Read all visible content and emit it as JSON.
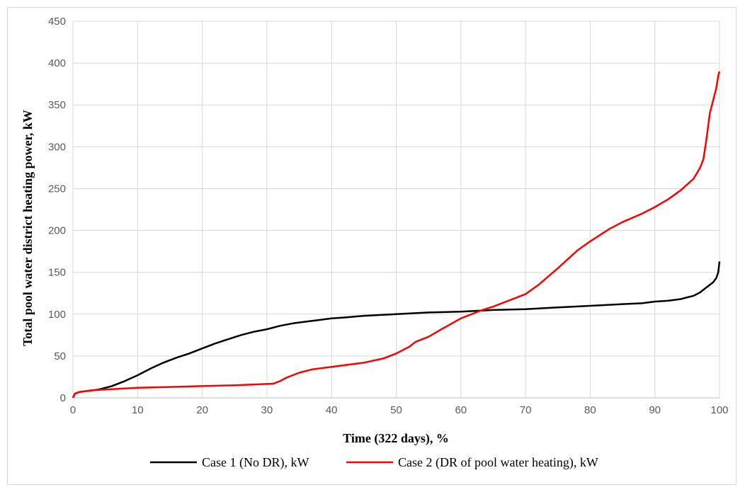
{
  "chart_data": {
    "type": "line",
    "title": "",
    "xlabel": "Time (322 days), %",
    "ylabel": "Total pool water district heating power, kW",
    "xlim": [
      0,
      100
    ],
    "ylim": [
      0,
      450
    ],
    "x_ticks": [
      "0",
      "10",
      "20",
      "30",
      "40",
      "50",
      "60",
      "70",
      "80",
      "90",
      "100"
    ],
    "y_ticks": [
      "0",
      "50",
      "100",
      "150",
      "200",
      "250",
      "300",
      "350",
      "400",
      "450"
    ],
    "grid": true,
    "legend_position": "bottom",
    "series": [
      {
        "name": "Case 1 (No DR), kW",
        "color": "#000000",
        "x": [
          0,
          0.3,
          1,
          2,
          3,
          4,
          5,
          6,
          7,
          8,
          10,
          12,
          14,
          16,
          18,
          20,
          22,
          24,
          26,
          28,
          30,
          32,
          34,
          36,
          38,
          40,
          42,
          45,
          50,
          55,
          60,
          65,
          70,
          75,
          80,
          85,
          88,
          90,
          92,
          94,
          95,
          96,
          97,
          98,
          99,
          99.5,
          99.8,
          100
        ],
        "y": [
          0,
          5,
          7,
          8,
          9,
          10,
          12,
          14,
          17,
          20,
          27,
          35,
          42,
          48,
          53,
          59,
          65,
          70,
          75,
          79,
          82,
          86,
          89,
          91,
          93,
          95,
          96,
          98,
          100,
          102,
          103,
          105,
          106,
          108,
          110,
          112,
          113,
          115,
          116,
          118,
          120,
          122,
          126,
          132,
          138,
          143,
          150,
          163
        ]
      },
      {
        "name": "Case 2 (DR of pool water heating), kW",
        "color": "#ff0000",
        "x": [
          0,
          0.3,
          1,
          2,
          3,
          5,
          10,
          15,
          20,
          25,
          28,
          31,
          32,
          33,
          35,
          37,
          40,
          45,
          48,
          50,
          52,
          53,
          55,
          57,
          60,
          63,
          65,
          67,
          70,
          72,
          75,
          78,
          80,
          83,
          85,
          88,
          90,
          92,
          94,
          96,
          97,
          97.5,
          98,
          98.5,
          99,
          99.5,
          99.8,
          100
        ],
        "y": [
          0,
          5,
          7,
          8,
          9,
          10,
          12,
          13,
          14,
          15,
          16,
          17,
          20,
          24,
          30,
          34,
          37,
          42,
          47,
          53,
          61,
          67,
          73,
          82,
          95,
          104,
          109,
          115,
          124,
          135,
          155,
          176,
          187,
          202,
          210,
          220,
          228,
          237,
          248,
          262,
          275,
          285,
          310,
          340,
          355,
          370,
          385,
          390
        ]
      }
    ]
  }
}
